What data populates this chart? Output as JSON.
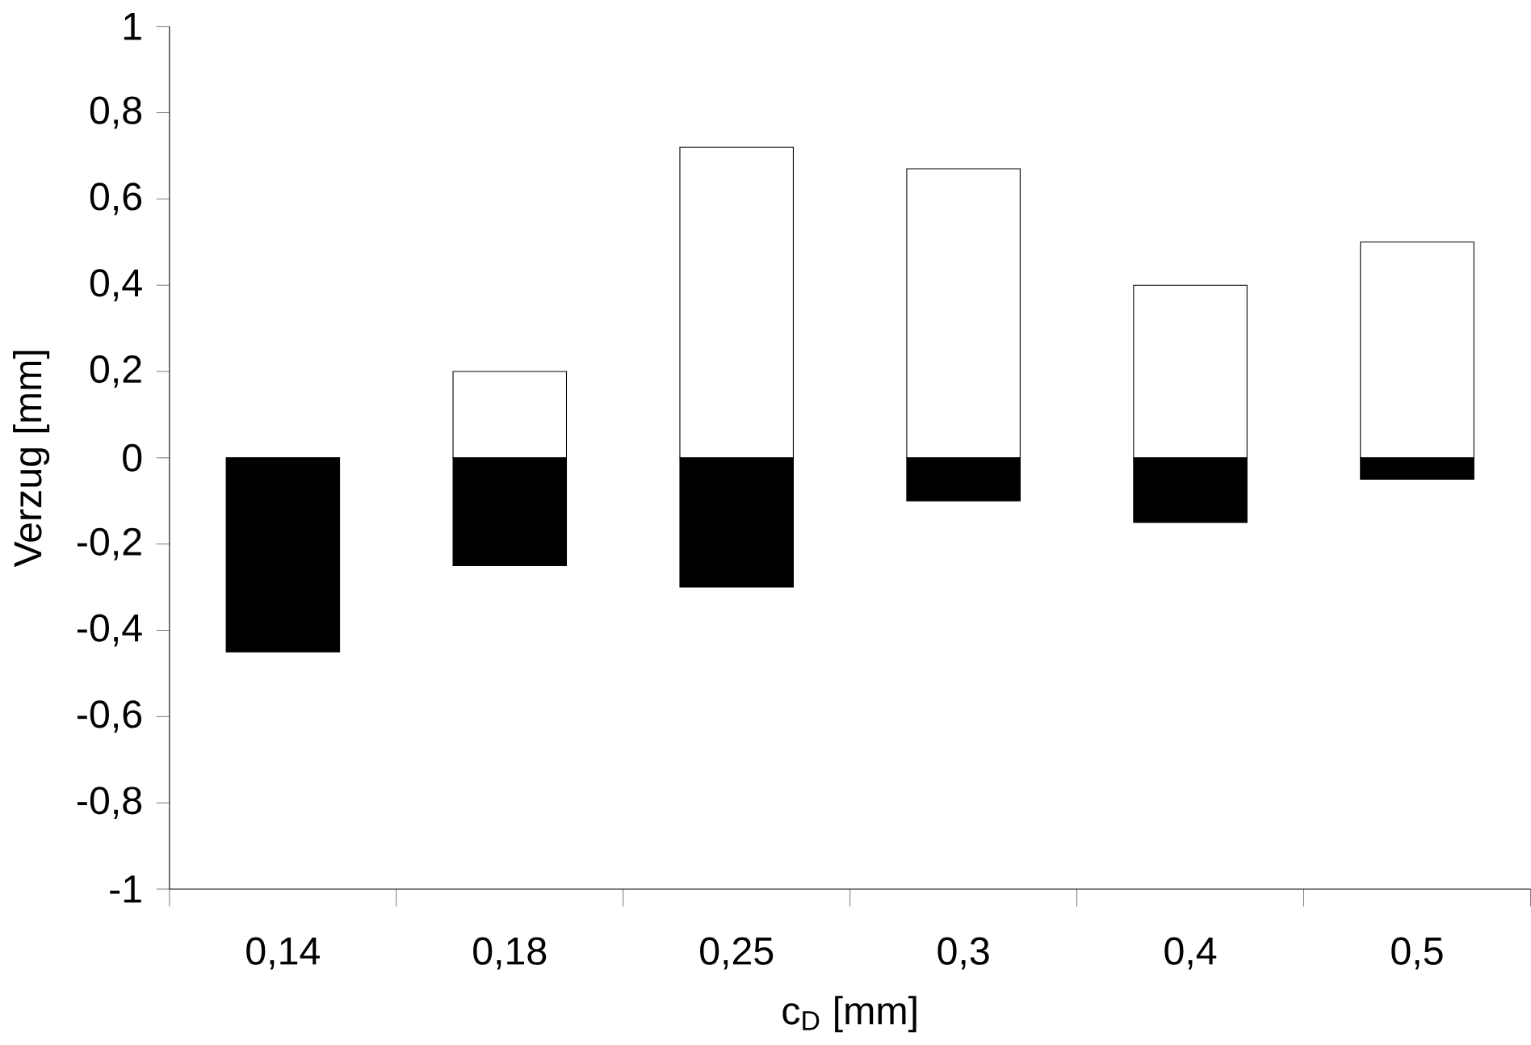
{
  "chart_data": {
    "type": "bar",
    "xlabel": "c$_{D}$ [mm]",
    "ylabel": "Verzug [mm]",
    "stacked": true,
    "categories": [
      "0,14",
      "0,18",
      "0,25",
      "0,3",
      "0,4",
      "0,5"
    ],
    "series": [
      {
        "color": "#000000",
        "values": [
          -0.45,
          -0.25,
          -0.3,
          -0.1,
          -0.15,
          -0.05
        ]
      },
      {
        "color": "#ffffff",
        "values": [
          null,
          0.2,
          0.72,
          0.67,
          0.4,
          0.5
        ]
      }
    ],
    "ylim": [
      -1,
      1
    ],
    "yticks": [
      {
        "value": -1,
        "label": "-1"
      },
      {
        "value": -0.8,
        "label": "-0,8"
      },
      {
        "value": -0.6,
        "label": "-0,6"
      },
      {
        "value": -0.4,
        "label": "-0,4"
      },
      {
        "value": -0.2,
        "label": "-0,2"
      },
      {
        "value": 0,
        "label": "0"
      },
      {
        "value": 0.2,
        "label": "0,2"
      },
      {
        "value": 0.4,
        "label": "0,4"
      },
      {
        "value": 0.6,
        "label": "0,6"
      },
      {
        "value": 0.8,
        "label": "0,8"
      },
      {
        "value": 1,
        "label": "1"
      }
    ],
    "grid": false
  }
}
